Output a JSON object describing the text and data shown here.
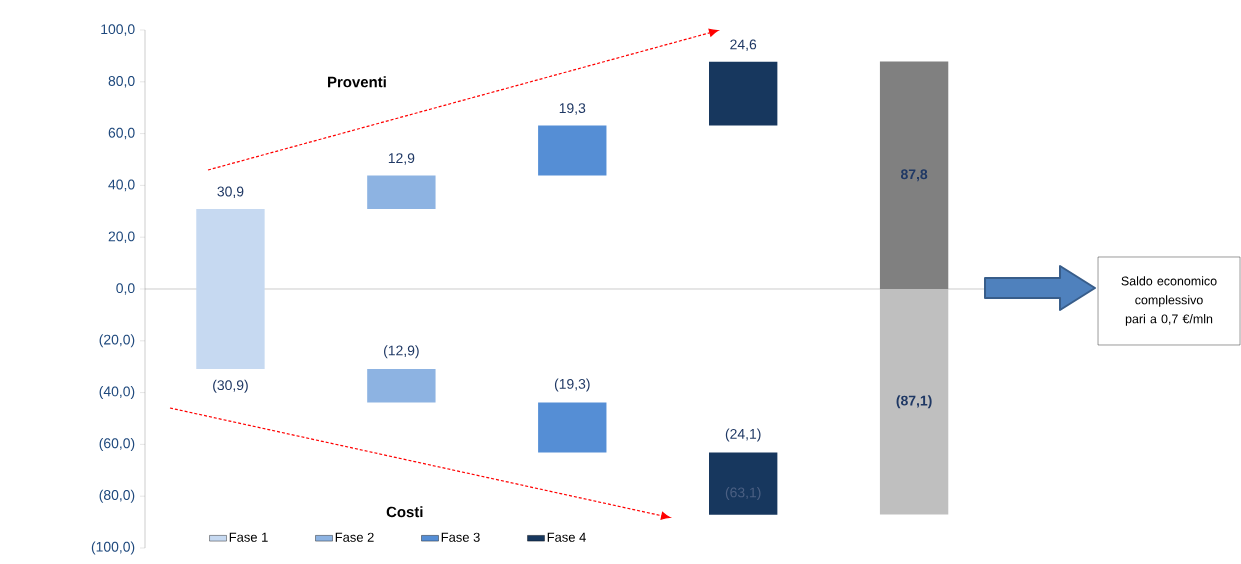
{
  "chart_data": {
    "type": "bar",
    "categories": [
      null,
      null,
      null,
      null,
      null
    ],
    "series": [
      {
        "name": "Fase 1",
        "color": "#c6d9f1",
        "values": [
          30.9,
          null,
          null,
          null,
          null
        ],
        "base": [
          0,
          null,
          null,
          null,
          null
        ],
        "value_labels": [
          "30,9",
          null,
          null,
          null,
          null
        ]
      },
      {
        "color": "#c6d9f1",
        "values": [
          -30.9,
          null,
          null,
          null,
          null
        ],
        "base": [
          0,
          null,
          null,
          null,
          null
        ],
        "value_labels": [
          "(30,9)",
          null,
          null,
          null,
          null
        ]
      },
      {
        "name": "Fase 2",
        "color": "#8db3e2",
        "values": [
          null,
          12.9,
          null,
          null,
          null
        ],
        "base": [
          null,
          30.9,
          null,
          null,
          null
        ],
        "value_labels": [
          null,
          "12,9",
          null,
          null,
          null
        ]
      },
      {
        "color": "#8db3e2",
        "values": [
          null,
          -12.9,
          null,
          null,
          null
        ],
        "base": [
          null,
          -30.9,
          null,
          null,
          null
        ],
        "value_labels": [
          null,
          "(12,9)",
          null,
          null,
          null
        ]
      },
      {
        "name": "Fase 3",
        "color": "#558ed5",
        "values": [
          null,
          null,
          19.3,
          null,
          null
        ],
        "base": [
          null,
          null,
          43.8,
          null,
          null
        ],
        "value_labels": [
          null,
          null,
          "19,3",
          null,
          null
        ]
      },
      {
        "color": "#558ed5",
        "values": [
          null,
          null,
          -19.3,
          null,
          null
        ],
        "base": [
          null,
          null,
          -43.8,
          null,
          null
        ],
        "value_labels": [
          null,
          null,
          "(19,3)",
          null,
          null
        ]
      },
      {
        "name": "Fase 4",
        "color": "#17375e",
        "values": [
          null,
          null,
          null,
          24.6,
          null
        ],
        "base": [
          null,
          null,
          null,
          63.1,
          null
        ],
        "value_labels": [
          null,
          null,
          null,
          "24,6",
          null
        ]
      },
      {
        "color": "#17375e",
        "values": [
          null,
          null,
          null,
          -24.1,
          null
        ],
        "base": [
          null,
          null,
          null,
          -63.1,
          null
        ],
        "value_labels": [
          null,
          null,
          null,
          "(24,1)",
          null
        ]
      },
      {
        "color": "#808080",
        "values": [
          null,
          null,
          null,
          null,
          87.8
        ],
        "base": [
          null,
          null,
          null,
          null,
          0
        ],
        "value_labels": [
          null,
          null,
          null,
          null,
          "87,8"
        ]
      },
      {
        "color": "#bfbfbf",
        "values": [
          null,
          null,
          null,
          null,
          -87.1
        ],
        "base": [
          null,
          null,
          null,
          null,
          0
        ],
        "value_labels": [
          null,
          null,
          null,
          null,
          "(87,1)"
        ]
      }
    ],
    "ylim": [
      -100,
      100
    ],
    "yticks": [
      {
        "value": -100,
        "label": "(100,0)"
      },
      {
        "value": -80,
        "label": "(80,0)"
      },
      {
        "value": -60,
        "label": "(60,0)"
      },
      {
        "value": -40,
        "label": "(40,0)"
      },
      {
        "value": -20,
        "label": "(20,0)"
      },
      {
        "value": 0,
        "label": "0,0"
      },
      {
        "value": 20,
        "label": "20,0"
      },
      {
        "value": 40,
        "label": "40,0"
      },
      {
        "value": 60,
        "label": "60,0"
      },
      {
        "value": 80,
        "label": "80,0"
      },
      {
        "value": 100,
        "label": "100,0"
      }
    ],
    "annotations": [
      "Proventi",
      "Costi",
      "(63,1)",
      "Saldo economico complessivo pari a 0,7 €/mln"
    ],
    "legend": "bottom"
  }
}
